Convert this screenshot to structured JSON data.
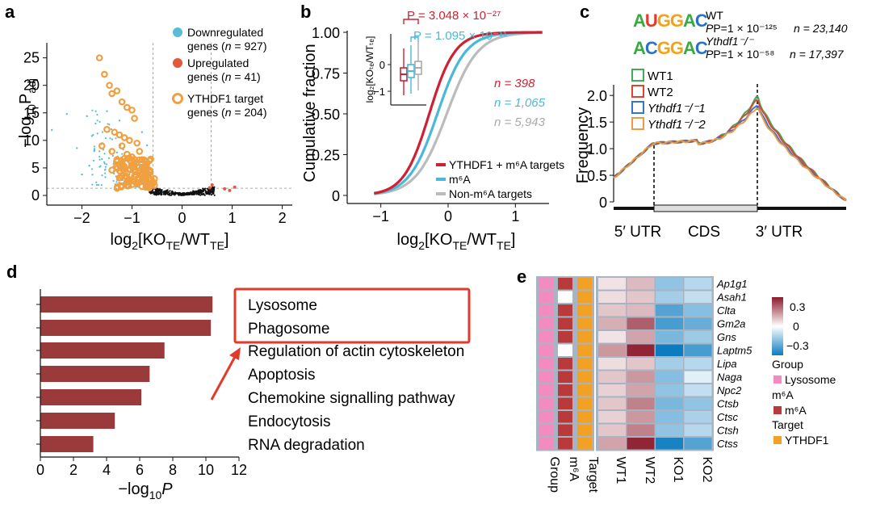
{
  "panels": {
    "a": {
      "label": "a",
      "legend": [
        {
          "l1": "Downregulated",
          "l2a": "genes (",
          "n": "n",
          "l2b": " = 927)"
        },
        {
          "l1": "Upregulated",
          "l2a": "genes (",
          "n": "n",
          "l2b": " = 41)"
        },
        {
          "l1": "YTHDF1 target",
          "l2a": "genes (",
          "n": "n",
          "l2b": " = 204)"
        }
      ],
      "colors": {
        "down": "#5bbcd6",
        "up": "#e05a3c",
        "target": "#f0a040",
        "bg": "#111111"
      }
    },
    "b": {
      "label": "b",
      "p_red": "P = 3.048 × 10⁻²⁷",
      "p_blue": "P = 1.095 × 10⁻¹¹",
      "n_red": "n = 398",
      "n_blue": "n = 1,065",
      "n_grey": "n = 5,943",
      "legend": [
        "YTHDF1 + m⁶A targets",
        "m⁶A",
        "Non-m⁶A targets"
      ],
      "inset_ylabel": "log₂[KOₜₑ/WTₜₑ]",
      "inset_ticks": [
        "0",
        "−1"
      ]
    },
    "c": {
      "label": "c",
      "motif1": "AUGGAC",
      "motif2": "ACGGAC",
      "wt": "WT",
      "ko": "Ythdf1⁻/⁻",
      "p1": "P=1 × 10⁻¹²⁵",
      "n1": "n = 23,140",
      "p2": "P=1 × 10⁻⁵⁸",
      "n2": "n = 17,397",
      "legend": [
        "WT1",
        "WT2",
        "Ythdf1⁻/⁻1",
        "Ythdf1⁻/⁻2"
      ],
      "regions": [
        "5′ UTR",
        "CDS",
        "3′ UTR"
      ]
    },
    "d": {
      "label": "d",
      "title_terms": [
        "Lysosome",
        "Phagosome"
      ]
    },
    "e": {
      "label": "e",
      "genes": [
        "Ap1g1",
        "Asah1",
        "Clta",
        "Gm2a",
        "Gns",
        "Laptm5",
        "Lipa",
        "Naga",
        "Npc2",
        "Ctsb",
        "Ctsc",
        "Ctsh",
        "Ctss"
      ],
      "columns": [
        "Group",
        "m⁶A",
        "Target",
        "WT1",
        "WT2",
        "KO1",
        "KO2"
      ],
      "scale": [
        "0.3",
        "0",
        "−0.3"
      ],
      "legend_group": "Group",
      "legend_group_item": "Lysosome",
      "legend_m6a": "m⁶A",
      "legend_m6a_item": "m⁶A",
      "legend_target": "Target",
      "legend_target_item": "YTHDF1",
      "m6a_white_rows": [
        1,
        5
      ],
      "heat": [
        [
          0.05,
          0.12,
          -0.18,
          -0.12
        ],
        [
          0.06,
          0.1,
          -0.15,
          -0.1
        ],
        [
          0.1,
          0.12,
          -0.28,
          -0.2
        ],
        [
          0.14,
          0.28,
          -0.3,
          -0.25
        ],
        [
          0.05,
          0.16,
          -0.22,
          -0.16
        ],
        [
          0.18,
          0.38,
          -0.4,
          -0.3
        ],
        [
          0.06,
          0.1,
          -0.15,
          -0.12
        ],
        [
          0.1,
          0.18,
          -0.2,
          -0.05
        ],
        [
          0.08,
          0.16,
          -0.18,
          -0.1
        ],
        [
          0.1,
          0.22,
          -0.22,
          -0.18
        ],
        [
          0.08,
          0.18,
          -0.2,
          -0.14
        ],
        [
          0.1,
          0.22,
          -0.18,
          -0.12
        ],
        [
          0.16,
          0.38,
          -0.38,
          -0.28
        ]
      ]
    }
  },
  "chart_data": [
    {
      "panel": "a",
      "type": "scatter",
      "title": "",
      "xlabel": "log₂[KOₜₑ/WTₜₑ]",
      "ylabel": "−log₁₀Pₐₔⱼ",
      "xlim": [
        -2.7,
        2.2
      ],
      "ylim": [
        0,
        27
      ],
      "xticks": [
        "−2",
        "−1",
        "0",
        "1",
        "2"
      ],
      "yticks": [
        "0",
        "5",
        "10",
        "15",
        "20",
        "25"
      ],
      "thresholds": {
        "x": [
          -0.58,
          0.58
        ],
        "y": 1.3
      },
      "series": [
        {
          "name": "YTHDF1 target genes",
          "points": [
            [
              -1.65,
              25
            ],
            [
              -1.55,
              22
            ],
            [
              -1.45,
              20
            ],
            [
              -1.4,
              18.5
            ],
            [
              -1.3,
              19
            ],
            [
              -1.2,
              17
            ],
            [
              -1.1,
              16
            ],
            [
              -1.0,
              15.5
            ],
            [
              -0.95,
              14
            ],
            [
              -1.5,
              12
            ],
            [
              -1.35,
              11.5
            ],
            [
              -1.25,
              11
            ],
            [
              -1.15,
              10.5
            ],
            [
              -1.05,
              10
            ],
            [
              -0.9,
              9.5
            ],
            [
              -1.6,
              9
            ],
            [
              -1.2,
              9
            ],
            [
              -1.4,
              8
            ],
            [
              -0.85,
              8
            ],
            [
              -1.1,
              7.5
            ],
            [
              -1.0,
              7
            ],
            [
              -1.3,
              6.5
            ],
            [
              -0.8,
              6.5
            ],
            [
              -0.9,
              6
            ],
            [
              -1.2,
              5.5
            ],
            [
              -1.0,
              5.2
            ],
            [
              -0.75,
              5
            ],
            [
              -1.4,
              4.6
            ],
            [
              -0.85,
              4.5
            ],
            [
              -1.1,
              4
            ],
            [
              -0.7,
              3.8
            ],
            [
              -0.95,
              3.5
            ],
            [
              -1.25,
              3.2
            ],
            [
              -0.65,
              3
            ],
            [
              -0.8,
              2.8
            ],
            [
              -1.05,
              2.5
            ],
            [
              -0.6,
              2.3
            ],
            [
              -0.9,
              2.1
            ],
            [
              -0.7,
              1.9
            ],
            [
              -0.55,
              1.8
            ]
          ]
        },
        {
          "name": "Downregulated genes",
          "points": [
            [
              -2.3,
              14.8
            ],
            [
              -2.6,
              11.9
            ],
            [
              -1.9,
              14.4
            ],
            [
              -2.1,
              8.6
            ],
            [
              -1.8,
              10.8
            ],
            [
              -1.5,
              15.3
            ],
            [
              -1.25,
              13.6
            ],
            [
              -1.75,
              8.2
            ],
            [
              -1.6,
              6.6
            ],
            [
              -1.45,
              4.4
            ],
            [
              -1.3,
              7.8
            ],
            [
              -0.8,
              11.5
            ],
            [
              -0.7,
              9.1
            ],
            [
              -0.85,
              5.1
            ],
            [
              -2.0,
              3.8
            ],
            [
              -1.85,
              5.4
            ],
            [
              -0.65,
              6.8
            ]
          ]
        },
        {
          "name": "Upregulated genes",
          "points": [
            [
              0.6,
              1.9
            ],
            [
              0.85,
              1.2
            ],
            [
              0.55,
              1.4
            ],
            [
              0.95,
              0.9
            ],
            [
              1.05,
              1.5
            ]
          ]
        },
        {
          "name": "Non-significant genes",
          "points": []
        }
      ]
    },
    {
      "panel": "b",
      "type": "line",
      "title": "",
      "xlabel": "log₂[KOₜₑ/WTₜₑ]",
      "ylabel": "Cumulative fraction",
      "xlim": [
        -1.5,
        1.5
      ],
      "ylim": [
        0,
        1
      ],
      "xticks": [
        "−1",
        "0",
        "1"
      ],
      "yticks": [
        "0",
        "0.25",
        "0.50",
        "0.75",
        "1.00"
      ],
      "series": [
        {
          "name": "YTHDF1 + m⁶A targets",
          "color": "#cc2233",
          "center": -0.28,
          "spread": 0.19
        },
        {
          "name": "m⁶A",
          "color": "#4ab8d8",
          "center": -0.16,
          "spread": 0.21
        },
        {
          "name": "Non-m⁶A targets",
          "color": "#bbbbbb",
          "center": -0.02,
          "spread": 0.23
        }
      ]
    },
    {
      "panel": "c",
      "type": "line",
      "title": "",
      "xlabel": "",
      "ylabel": "Frequency",
      "ylim": [
        0,
        2.2
      ],
      "yticks": [
        "0",
        "0.5",
        "1.0",
        "1.5",
        "2.0"
      ],
      "series": [
        {
          "name": "WT1",
          "color": "#44aa55",
          "peak": 2.0
        },
        {
          "name": "WT2",
          "color": "#dd4433",
          "peak": 1.95
        },
        {
          "name": "Ythdf1⁻/⁻1",
          "color": "#3377cc",
          "peak": 1.85
        },
        {
          "name": "Ythdf1⁻/⁻2",
          "color": "#ee9944",
          "peak": 1.8
        }
      ]
    },
    {
      "panel": "d",
      "type": "bar",
      "title": "",
      "xlabel": "−log₁₀P",
      "ylabel": "",
      "xlim": [
        0,
        12
      ],
      "xticks": [
        "0",
        "2",
        "4",
        "6",
        "8",
        "10",
        "12"
      ],
      "categories": [
        "Lysosome",
        "Phagosome",
        "Regulation of actin cytoskeleton",
        "Apoptosis",
        "Chemokine signalling pathway",
        "Endocytosis",
        "RNA degradation"
      ],
      "values": [
        10.4,
        10.3,
        7.5,
        6.6,
        6.1,
        4.5,
        3.2
      ]
    }
  ]
}
